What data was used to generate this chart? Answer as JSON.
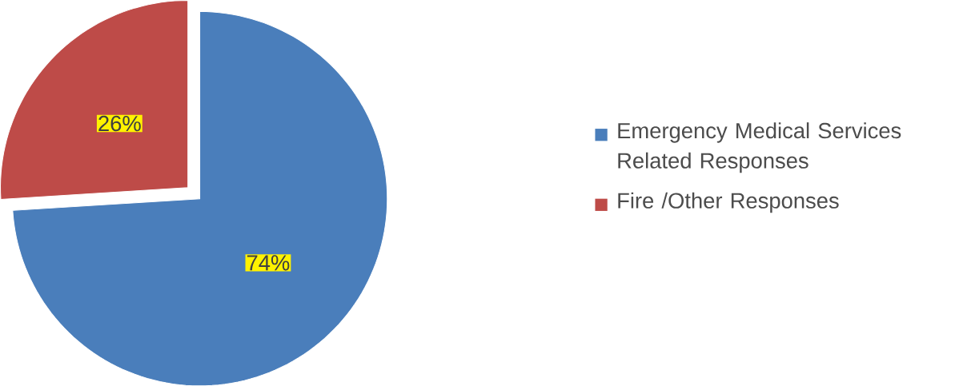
{
  "chart_data": {
    "type": "pie",
    "categories": [
      "Emergency Medical Services Related Responses",
      "Fire /Other Responses"
    ],
    "values": [
      74,
      26
    ],
    "colors": [
      "#4a7ebb",
      "#be4b48"
    ],
    "value_labels": [
      "74%",
      "26%"
    ],
    "legend": "right"
  }
}
